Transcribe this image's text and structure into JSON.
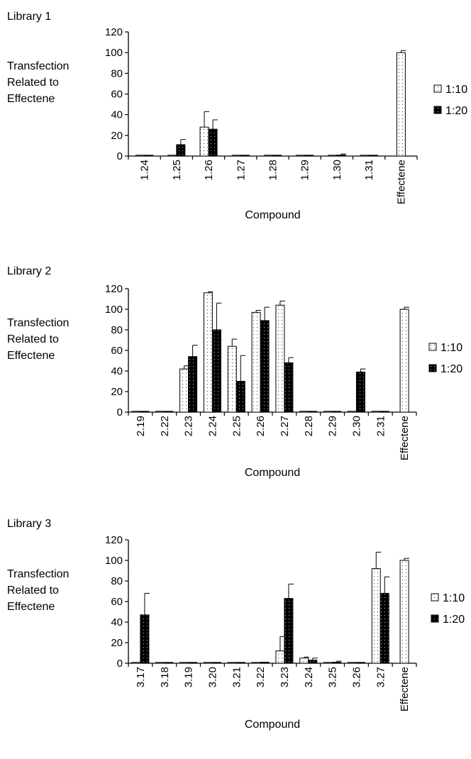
{
  "colors": {
    "series_1_10": "#ffffff",
    "series_1_20": "#000000",
    "axis": "#000000"
  },
  "chart_data": [
    {
      "type": "bar",
      "title": "Library 1",
      "ylabel": [
        "Transfection",
        "Related to",
        "Effectene"
      ],
      "xlabel": "Compound",
      "ylim": [
        0,
        120
      ],
      "yticks": [
        "0",
        "20",
        "40",
        "60",
        "80",
        "100",
        "120"
      ],
      "categories": [
        "1.24",
        "1.25",
        "1.26",
        "1.27",
        "1.28",
        "1.29",
        "1.30",
        "1.31",
        "Effectene"
      ],
      "series": [
        {
          "name": "1:10",
          "values": [
            0,
            0,
            28,
            0,
            0,
            0,
            0,
            0,
            100
          ],
          "errors": [
            0,
            0,
            15,
            0,
            0,
            0,
            0,
            0,
            2
          ]
        },
        {
          "name": "1:20",
          "values": [
            0,
            11,
            26,
            0,
            0,
            0,
            1,
            0,
            null
          ],
          "errors": [
            0,
            5,
            9,
            0,
            0,
            0,
            1,
            0,
            0
          ]
        }
      ],
      "legend": [
        "1:10",
        "1:20"
      ],
      "legend_position": "right"
    },
    {
      "type": "bar",
      "title": "Library 2",
      "ylabel": [
        "Transfection",
        "Related to",
        "Effectene"
      ],
      "xlabel": "Compound",
      "ylim": [
        0,
        120
      ],
      "yticks": [
        "0",
        "20",
        "40",
        "60",
        "80",
        "100",
        "120"
      ],
      "categories": [
        "2.19",
        "2.22",
        "2.23",
        "2.24",
        "2.25",
        "2.26",
        "2.27",
        "2.28",
        "2.29",
        "2.30",
        "2.31",
        "Effectene"
      ],
      "series": [
        {
          "name": "1:10",
          "values": [
            0,
            0,
            42,
            116,
            64,
            97,
            104,
            0,
            0,
            0,
            0,
            100
          ],
          "errors": [
            0,
            0,
            3,
            1,
            7,
            2,
            4,
            0,
            0,
            0,
            0,
            2
          ]
        },
        {
          "name": "1:20",
          "values": [
            0,
            0,
            54,
            80,
            30,
            89,
            48,
            0,
            0,
            39,
            0,
            null
          ],
          "errors": [
            0,
            0,
            11,
            26,
            25,
            13,
            5,
            0,
            0,
            3,
            0,
            0
          ]
        }
      ],
      "legend": [
        "1:10",
        "1:20"
      ],
      "legend_position": "right"
    },
    {
      "type": "bar",
      "title": "Library 3",
      "ylabel": [
        "Transfection",
        "Related to",
        "Effectene"
      ],
      "xlabel": "Compound",
      "ylim": [
        0,
        120
      ],
      "yticks": [
        "0",
        "20",
        "40",
        "60",
        "80",
        "100",
        "120"
      ],
      "categories": [
        "3.17",
        "3.18",
        "3.19",
        "3.20",
        "3.21",
        "3.22",
        "3.23",
        "3.24",
        "3.25",
        "3.26",
        "3.27",
        "Effectene"
      ],
      "series": [
        {
          "name": "1:10",
          "values": [
            0,
            0,
            0,
            0,
            0,
            0,
            12,
            5,
            0,
            0,
            92,
            100
          ],
          "errors": [
            0,
            0,
            0,
            0,
            0,
            0,
            14,
            1,
            0,
            0,
            16,
            2
          ]
        },
        {
          "name": "1:20",
          "values": [
            47,
            0,
            0,
            0,
            0,
            1,
            63,
            3,
            1,
            0,
            68,
            null
          ],
          "errors": [
            21,
            0,
            0,
            0,
            0,
            0,
            14,
            2,
            1,
            0,
            16,
            0
          ]
        }
      ],
      "legend": [
        "1:10",
        "1:20"
      ],
      "legend_position": "right"
    }
  ]
}
